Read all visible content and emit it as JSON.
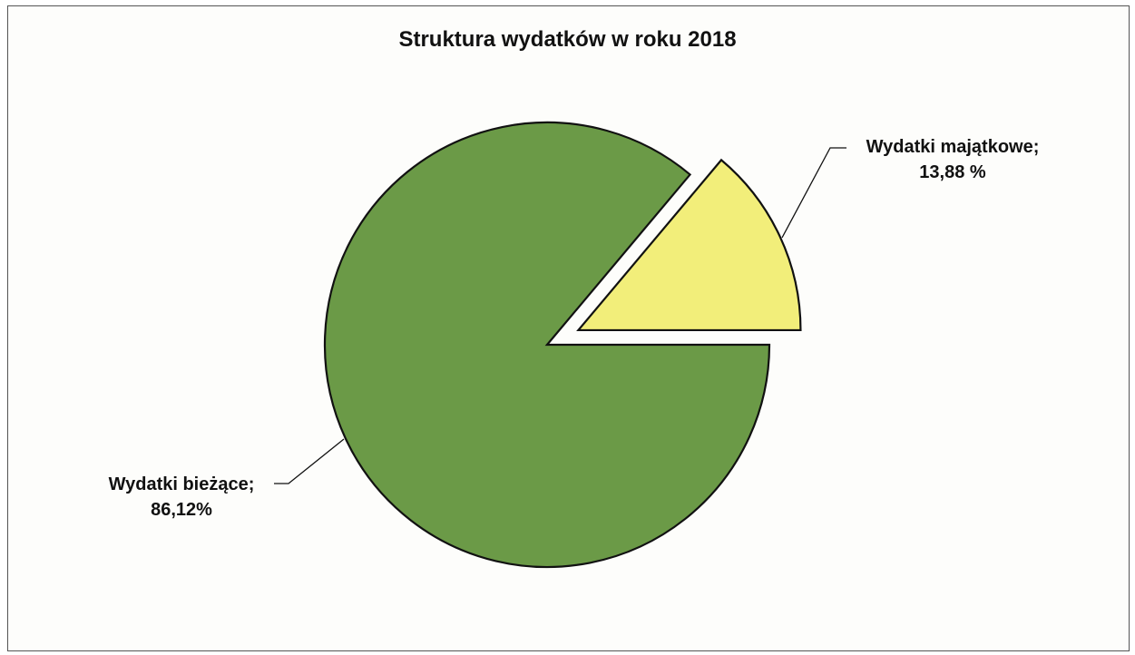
{
  "chart_data": {
    "type": "pie",
    "title": "Struktura wydatków w roku 2018",
    "slices": [
      {
        "name": "Wydatki majątkowe",
        "value": 13.88,
        "label_name": "Wydatki majątkowe;",
        "label_value": "13,88 %",
        "color": "#f2ee7a",
        "exploded": true
      },
      {
        "name": "Wydatki bieżące",
        "value": 86.12,
        "label_name": "Wydatki bieżące;",
        "label_value": "86,12%",
        "color": "#6b9a47",
        "exploded": false
      }
    ],
    "legend": "none",
    "labels": "outside-with-leader-lines"
  }
}
